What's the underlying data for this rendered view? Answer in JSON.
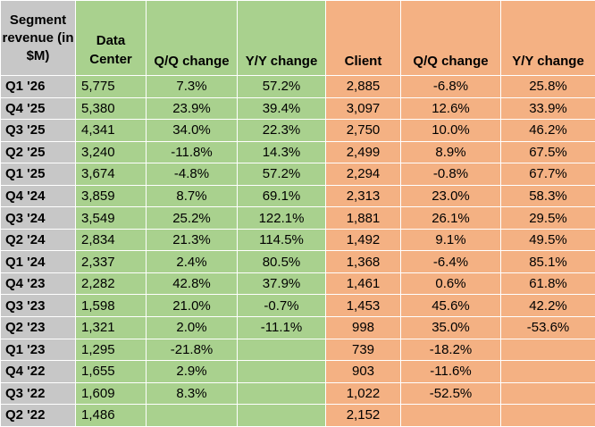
{
  "chart_data": {
    "type": "table",
    "columns": [
      "Segment revenue (in $M)",
      "Data Center",
      "Q/Q change",
      "Y/Y change",
      "Client",
      "Q/Q change",
      "Y/Y change"
    ],
    "column_groups": [
      {
        "name": "Data Center",
        "color": "#a9d18e"
      },
      {
        "name": "Client",
        "color": "#f4b183"
      }
    ],
    "label_color": "#c7c7c7",
    "rows": [
      [
        "Q1 '26",
        "5,775",
        "7.3%",
        "57.2%",
        "2,885",
        "-6.8%",
        "25.8%"
      ],
      [
        "Q4 '25",
        "5,380",
        "23.9%",
        "39.4%",
        "3,097",
        "12.6%",
        "33.9%"
      ],
      [
        "Q3 '25",
        "4,341",
        "34.0%",
        "22.3%",
        "2,750",
        "10.0%",
        "46.2%"
      ],
      [
        "Q2 '25",
        "3,240",
        "-11.8%",
        "14.3%",
        "2,499",
        "8.9%",
        "67.5%"
      ],
      [
        "Q1 '25",
        "3,674",
        "-4.8%",
        "57.2%",
        "2,294",
        "-0.8%",
        "67.7%"
      ],
      [
        "Q4 '24",
        "3,859",
        "8.7%",
        "69.1%",
        "2,313",
        "23.0%",
        "58.3%"
      ],
      [
        "Q3 '24",
        "3,549",
        "25.2%",
        "122.1%",
        "1,881",
        "26.1%",
        "29.5%"
      ],
      [
        "Q2 '24",
        "2,834",
        "21.3%",
        "114.5%",
        "1,492",
        "9.1%",
        "49.5%"
      ],
      [
        "Q1 '24",
        "2,337",
        "2.4%",
        "80.5%",
        "1,368",
        "-6.4%",
        "85.1%"
      ],
      [
        "Q4 '23",
        "2,282",
        "42.8%",
        "37.9%",
        "1,461",
        "0.6%",
        "61.8%"
      ],
      [
        "Q3 '23",
        "1,598",
        "21.0%",
        "-0.7%",
        "1,453",
        "45.6%",
        "42.2%"
      ],
      [
        "Q2 '23",
        "1,321",
        "2.0%",
        "-11.1%",
        "998",
        "35.0%",
        "-53.6%"
      ],
      [
        "Q1 '23",
        "1,295",
        "-21.8%",
        "",
        "739",
        "-18.2%",
        ""
      ],
      [
        "Q4 '22",
        "1,655",
        "2.9%",
        "",
        "903",
        "-11.6%",
        ""
      ],
      [
        "Q3 '22",
        "1,609",
        "8.3%",
        "",
        "1,022",
        "-52.5%",
        ""
      ],
      [
        "Q2 '22",
        "1,486",
        "",
        "",
        "2,152",
        "",
        ""
      ]
    ]
  }
}
